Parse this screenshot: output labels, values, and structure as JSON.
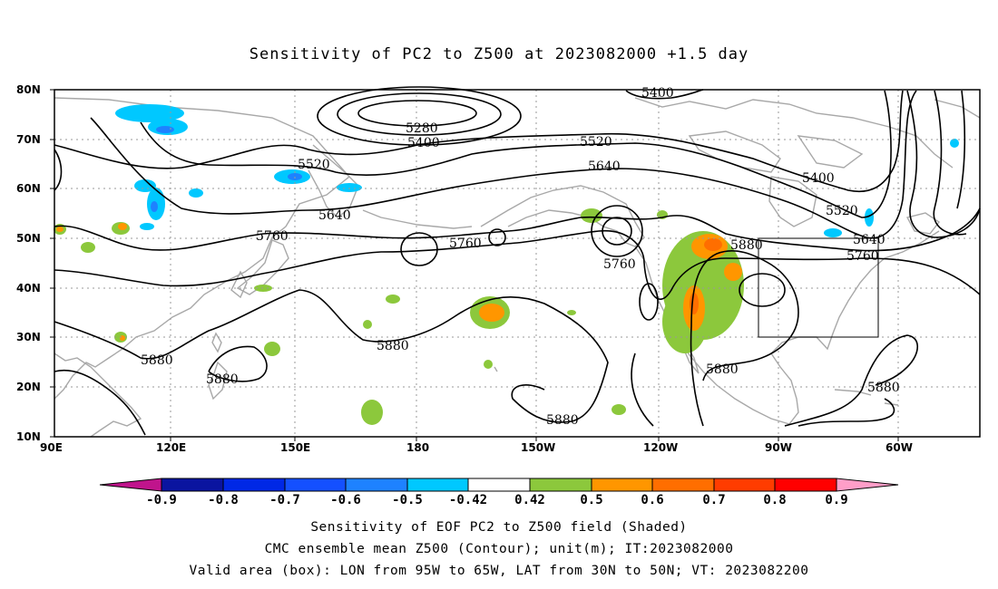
{
  "title": "Sensitivity of PC2 to Z500 at 2023082000 +1.5 day",
  "axes": {
    "lat_labels": [
      "80N",
      "70N",
      "60N",
      "50N",
      "40N",
      "30N",
      "20N",
      "10N"
    ],
    "lon_labels": [
      "90E",
      "120E",
      "150E",
      "180",
      "150W",
      "120W",
      "90W",
      "60W"
    ]
  },
  "contour_labels": [
    "5400",
    "5280",
    "5400",
    "5520",
    "5520",
    "5640",
    "5400",
    "5520",
    "5640",
    "5640",
    "5760",
    "5760",
    "5760",
    "5760",
    "5880",
    "5880",
    "5880",
    "5880",
    "5880",
    "5880",
    "5880"
  ],
  "colorbar": {
    "labels": [
      "-0.9",
      "-0.8",
      "-0.7",
      "-0.6",
      "-0.5",
      "-0.42",
      "0.42",
      "0.5",
      "0.6",
      "0.7",
      "0.8",
      "0.9"
    ],
    "colors": [
      "#c0148c",
      "#0a14a0",
      "#0028e6",
      "#1450ff",
      "#1e82ff",
      "#00c8ff",
      "#ffffff",
      "#8cc83c",
      "#ff9600",
      "#ff6e00",
      "#ff3c00",
      "#ff0000",
      "#ff9ec8"
    ]
  },
  "captions": {
    "line1": "Sensitivity of EOF PC2 to Z500 field (Shaded)",
    "line2": "CMC ensemble mean Z500 (Contour); unit(m); IT:2023082000",
    "line3": "Valid area (box): LON from 95W to 65W, LAT from 30N to 50N; VT: 2023082200"
  }
}
